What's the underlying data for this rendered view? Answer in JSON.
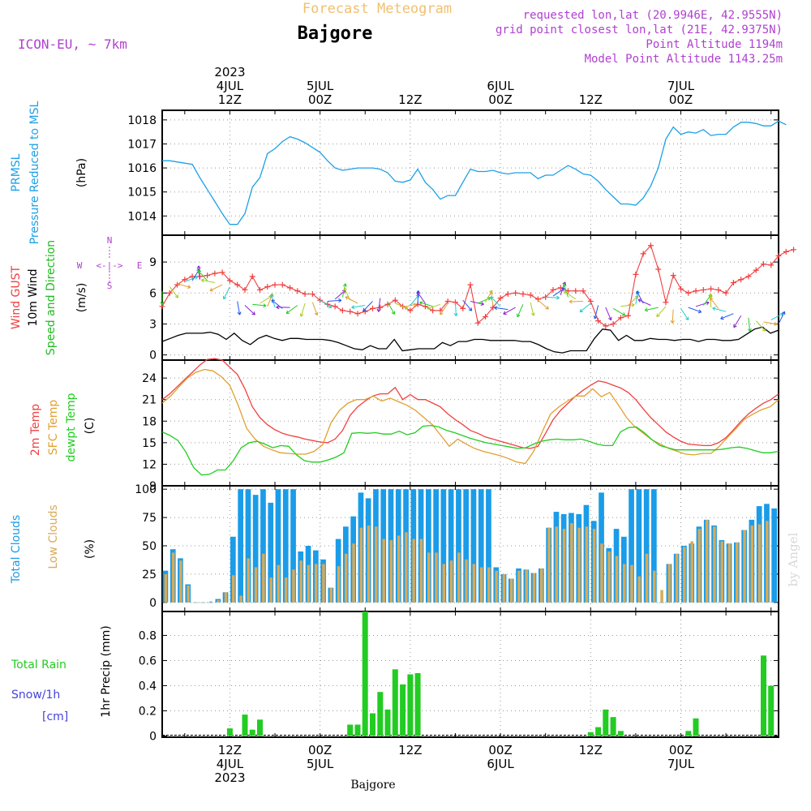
{
  "header": {
    "super_title": "Forecast Meteogram",
    "location": "Bajgore",
    "model": "ICON-EU, ~ 7km",
    "requested": "requested lon,lat (20.9946E, 42.9555N)",
    "grid_point": "grid point closest lon,lat (21E, 42.9375N)",
    "point_altitude": "Point Altitude 1194m",
    "model_altitude": "Model Point Altitude 1143.25m",
    "footer_location": "Bajgore",
    "watermark": "by Angel"
  },
  "colors": {
    "pressure": "#1ca0e8",
    "gust": "#f04040",
    "wind": "#000000",
    "dir_label": "#22bb22",
    "temp2m": "#f04040",
    "sfc": "#e0a030",
    "dewpt": "#22cc22",
    "total_clouds": "#1a9ce8",
    "low_clouds": "#d8aa58",
    "rain": "#22cc22",
    "snow": "#4444dd",
    "compass": "#b040d0",
    "header_info": "#b040d0",
    "super_title": "#f0c070"
  },
  "compass": {
    "n": "N",
    "s": "S",
    "w": "W",
    "e": "E",
    "glyph_h": "<-|->"
  },
  "time_axis": {
    "top_labels": [
      {
        "hour": 12,
        "lines": [
          "2023",
          "4JUL",
          "12Z"
        ]
      },
      {
        "hour": 24,
        "lines": [
          "5JUL",
          "00Z"
        ]
      },
      {
        "hour": 36,
        "lines": [
          "12Z"
        ]
      },
      {
        "hour": 48,
        "lines": [
          "6JUL",
          "00Z"
        ]
      },
      {
        "hour": 60,
        "lines": [
          "12Z"
        ]
      },
      {
        "hour": 72,
        "lines": [
          "7JUL",
          "00Z"
        ]
      }
    ],
    "bottom_labels": [
      {
        "hour": 12,
        "lines": [
          "12Z",
          "4JUL",
          "2023"
        ]
      },
      {
        "hour": 24,
        "lines": [
          "00Z",
          "5JUL"
        ]
      },
      {
        "hour": 36,
        "lines": [
          "12Z"
        ]
      },
      {
        "hour": 48,
        "lines": [
          "00Z",
          "6JUL"
        ]
      },
      {
        "hour": 60,
        "lines": [
          "12Z"
        ]
      },
      {
        "hour": 72,
        "lines": [
          "00Z",
          "7JUL"
        ]
      }
    ]
  },
  "chart_data": [
    {
      "type": "line",
      "id": "pressure",
      "ylabel_lines": [
        "PRMSL",
        "Pressure Reduced to MSL"
      ],
      "units": "(hPa)",
      "ylim": [
        1013.2,
        1018.4
      ],
      "yticks": [
        1014,
        1015,
        1016,
        1017,
        1018
      ],
      "series": [
        {
          "values": [
            1016.3,
            1016.3,
            1016.25,
            1016.2,
            1016.15,
            1015.6,
            1015.1,
            1014.6,
            1014.1,
            1013.65,
            1013.65,
            1014.1,
            1015.2,
            1015.6,
            1016.6,
            1016.8,
            1017.1,
            1017.3,
            1017.2,
            1017.05,
            1016.85,
            1016.65,
            1016.3,
            1016.0,
            1015.9,
            1015.95,
            1016.0,
            1016.0,
            1016.0,
            1015.95,
            1015.8,
            1015.45,
            1015.4,
            1015.5,
            1015.95,
            1015.4,
            1015.1,
            1014.7,
            1014.85,
            1014.85,
            1015.4,
            1015.95,
            1015.85,
            1015.85,
            1015.9,
            1015.8,
            1015.75,
            1015.8,
            1015.8,
            1015.8,
            1015.55,
            1015.7,
            1015.7,
            1015.9,
            1016.1,
            1015.95,
            1015.75,
            1015.7,
            1015.45,
            1015.1,
            1014.8,
            1014.5,
            1014.5,
            1014.45,
            1014.75,
            1015.25,
            1016.0,
            1017.2,
            1017.7,
            1017.4,
            1017.5,
            1017.45,
            1017.6,
            1017.35,
            1017.4,
            1017.4,
            1017.7,
            1017.9,
            1017.9,
            1017.85,
            1017.75,
            1017.75,
            1017.95,
            1017.8
          ]
        }
      ]
    },
    {
      "type": "line",
      "id": "wind",
      "ylabel_lines": [
        "Wind GUST",
        "10m Wind",
        "Speed and Direction"
      ],
      "units": "(m/s)",
      "ylim": [
        -0.5,
        11.6
      ],
      "yticks": [
        0,
        3,
        6,
        9
      ],
      "series": [
        {
          "name": "Wind GUST",
          "values": [
            4.7,
            6.0,
            6.8,
            7.3,
            7.6,
            7.6,
            7.7,
            7.9,
            8.0,
            7.2,
            6.8,
            6.3,
            7.6,
            6.3,
            6.6,
            6.8,
            6.8,
            6.5,
            6.2,
            5.9,
            5.9,
            5.3,
            4.9,
            4.7,
            4.3,
            4.2,
            4.0,
            4.2,
            4.5,
            4.6,
            4.9,
            5.3,
            4.7,
            4.3,
            4.9,
            4.7,
            4.3,
            4.3,
            5.2,
            5.1,
            4.5,
            6.8,
            3.1,
            3.7,
            4.6,
            5.5,
            5.9,
            6.0,
            5.9,
            5.8,
            5.4,
            5.6,
            6.3,
            6.5,
            6.2,
            6.2,
            6.2,
            5.2,
            3.3,
            2.8,
            3.0,
            3.6,
            3.8,
            7.8,
            9.8,
            10.6,
            8.3,
            5.1,
            7.7,
            6.4,
            6.0,
            6.2,
            6.3,
            6.4,
            6.3,
            6.0,
            7.0,
            7.3,
            7.6,
            8.2,
            8.8,
            8.7,
            9.6,
            10.0,
            10.2
          ]
        },
        {
          "name": "10m Wind",
          "values": [
            1.3,
            1.6,
            1.9,
            2.1,
            2.1,
            2.1,
            2.2,
            2.0,
            1.5,
            2.1,
            1.4,
            1.0,
            1.6,
            1.9,
            1.6,
            1.4,
            1.6,
            1.6,
            1.5,
            1.5,
            1.5,
            1.4,
            1.2,
            0.9,
            0.6,
            0.5,
            0.9,
            0.6,
            0.6,
            1.5,
            0.4,
            0.5,
            0.6,
            0.6,
            0.6,
            1.2,
            0.9,
            1.3,
            1.3,
            1.5,
            1.5,
            1.4,
            1.4,
            1.4,
            1.4,
            1.3,
            1.3,
            1.0,
            0.6,
            0.3,
            0.2,
            0.4,
            0.4,
            0.4,
            1.6,
            2.5,
            2.4,
            1.4,
            1.9,
            1.4,
            1.4,
            1.6,
            1.5,
            1.5,
            1.4,
            1.5,
            1.5,
            1.3,
            1.5,
            1.5,
            1.4,
            1.4,
            1.5,
            2.0,
            2.5,
            2.7,
            2.1,
            2.4
          ]
        },
        {
          "name": "Speed and Direction",
          "values": [
            6.2,
            6.6,
            6.9,
            7.1,
            7.2,
            7.3,
            7.2,
            7.0,
            6.8,
            6.6,
            5.2,
            4.8,
            4.9,
            5.0,
            4.7,
            4.6,
            4.5,
            4.6,
            4.8,
            5.0,
            5.1,
            5.3,
            5.2,
            5.4,
            5.6,
            5.3,
            5.0,
            4.8,
            5.2,
            5.5,
            5.1,
            5.0,
            4.6,
            4.8,
            4.9,
            5.0,
            4.7,
            4.9,
            5.0,
            5.1,
            5.3,
            5.2,
            5.0,
            5.1,
            4.8,
            4.7,
            4.4,
            4.6,
            4.9,
            5.1,
            5.3,
            5.6,
            5.7,
            5.8,
            5.6,
            5.4,
            5.2,
            5.0,
            4.8,
            4.6,
            4.5,
            4.7,
            4.8,
            4.9,
            5.0,
            4.8,
            4.6,
            4.7,
            4.4,
            4.5,
            4.6,
            4.7,
            4.8,
            4.6,
            4.5,
            4.2,
            4.0,
            3.8,
            3.6,
            3.3,
            3.2,
            3.4,
            3.0
          ]
        }
      ]
    },
    {
      "type": "line",
      "id": "temperature",
      "ylabel_lines": [
        "2m Temp",
        "SFC Temp",
        "dewpt Temp"
      ],
      "units": "(C)",
      "ylim": [
        9,
        26.5
      ],
      "yticks": [
        9,
        12,
        15,
        18,
        21,
        24
      ],
      "series": [
        {
          "name": "2m Temp",
          "values": [
            21.0,
            21.8,
            22.8,
            23.8,
            24.8,
            25.8,
            26.6,
            26.7,
            26.5,
            25.5,
            24.5,
            22.5,
            20.0,
            18.5,
            17.5,
            16.8,
            16.3,
            16.0,
            15.8,
            15.5,
            15.3,
            15.1,
            15.0,
            15.5,
            16.7,
            18.8,
            20.0,
            20.8,
            21.5,
            21.8,
            21.8,
            22.7,
            21.0,
            21.7,
            21.0,
            21.0,
            20.5,
            20.0,
            19.0,
            18.2,
            17.5,
            16.7,
            16.3,
            15.8,
            15.5,
            15.2,
            14.9,
            14.6,
            14.3,
            14.2,
            14.5,
            16.3,
            18.2,
            19.5,
            20.5,
            21.5,
            22.3,
            23.0,
            23.6,
            23.4,
            23.0,
            22.6,
            22.0,
            21.0,
            19.7,
            18.5,
            17.5,
            16.5,
            15.8,
            15.2,
            14.8,
            14.7,
            14.6,
            14.6,
            15.0,
            15.7,
            16.8,
            18.0,
            19.0,
            19.8,
            20.5,
            21.0,
            21.8
          ]
        },
        {
          "name": "SFC Temp",
          "values": [
            20.5,
            21.5,
            22.8,
            24.0,
            24.8,
            25.2,
            25.0,
            24.2,
            23.0,
            20.2,
            17.0,
            15.5,
            14.5,
            14.0,
            13.6,
            13.5,
            13.4,
            13.4,
            13.8,
            14.7,
            17.8,
            19.5,
            20.5,
            21.0,
            21.0,
            21.5,
            20.8,
            21.2,
            20.7,
            20.2,
            19.5,
            18.5,
            17.5,
            16.0,
            14.5,
            15.5,
            14.8,
            14.2,
            13.8,
            13.5,
            13.2,
            12.8,
            12.3,
            12.1,
            13.8,
            16.5,
            19.0,
            20.0,
            20.8,
            21.5,
            21.5,
            22.5,
            21.4,
            22.0,
            20.3,
            18.5,
            17.2,
            16.3,
            15.4,
            14.8,
            14.2,
            13.8,
            13.4,
            13.3,
            13.5,
            13.5,
            14.5,
            15.8,
            17.0,
            18.3,
            19.0,
            19.6,
            20.0,
            21.0
          ]
        },
        {
          "name": "dewpt Temp",
          "values": [
            16.5,
            16.0,
            15.3,
            13.7,
            11.5,
            10.5,
            10.6,
            11.2,
            11.2,
            12.5,
            14.3,
            15.0,
            15.2,
            14.8,
            14.3,
            14.6,
            14.5,
            13.3,
            12.5,
            12.3,
            12.3,
            12.6,
            13.0,
            13.6,
            16.3,
            16.4,
            16.3,
            16.4,
            16.2,
            16.2,
            16.6,
            16.1,
            16.4,
            17.3,
            17.4,
            17.2,
            16.7,
            16.4,
            16.0,
            15.6,
            15.3,
            15.0,
            14.8,
            14.6,
            14.4,
            14.2,
            14.3,
            14.8,
            15.2,
            15.4,
            15.5,
            15.4,
            15.4,
            15.5,
            15.2,
            14.8,
            14.6,
            14.6,
            16.5,
            17.1,
            17.2,
            16.4,
            15.4,
            14.6,
            14.3,
            14.0,
            14.0,
            14.0,
            14.0,
            14.0,
            14.0,
            14.1,
            14.3,
            14.4,
            14.2,
            13.9,
            13.6,
            13.6,
            13.8
          ]
        }
      ]
    },
    {
      "type": "bar",
      "id": "clouds",
      "ylabel_lines": [
        "Total Clouds",
        "Low Clouds"
      ],
      "units": "(%)",
      "ylim": [
        -8,
        103
      ],
      "yticks": [
        0,
        25,
        50,
        75,
        100
      ],
      "series": [
        {
          "name": "Total Clouds",
          "values": [
            28,
            47,
            39,
            16,
            0,
            0,
            0,
            3,
            9,
            58,
            100,
            100,
            95,
            100,
            88,
            100,
            100,
            100,
            45,
            50,
            46,
            38,
            13,
            56,
            67,
            76,
            97,
            92,
            100,
            100,
            100,
            100,
            100,
            100,
            100,
            100,
            100,
            100,
            100,
            100,
            100,
            100,
            100,
            100,
            31,
            25,
            21,
            30,
            29,
            26,
            30,
            66,
            80,
            78,
            79,
            78,
            86,
            72,
            97,
            48,
            65,
            58,
            100,
            100,
            100,
            100,
            0,
            34,
            43,
            50,
            52,
            67,
            73,
            68,
            55,
            52,
            53,
            64,
            73,
            85,
            87,
            83
          ]
        },
        {
          "name": "Low Clouds",
          "values": [
            25,
            44,
            37,
            15,
            0,
            0,
            1,
            2,
            9,
            24,
            6,
            39,
            31,
            43,
            22,
            33,
            22,
            29,
            37,
            33,
            34,
            34,
            13,
            32,
            43,
            52,
            66,
            68,
            67,
            56,
            55,
            59,
            62,
            56,
            56,
            44,
            44,
            34,
            37,
            44,
            38,
            34,
            31,
            31,
            28,
            25,
            21,
            28,
            29,
            26,
            30,
            66,
            67,
            65,
            70,
            66,
            67,
            65,
            52,
            45,
            41,
            34,
            33,
            23,
            43,
            28,
            11,
            34,
            43,
            49,
            54,
            65,
            73,
            67,
            54,
            52,
            53,
            64,
            68,
            69,
            72
          ]
        }
      ]
    },
    {
      "type": "bar",
      "id": "precip",
      "ylabel_lines": [
        "1hr Precip (mm)"
      ],
      "left_labels": [
        "Total  Rain",
        "Snow/1h",
        "[cm]"
      ],
      "ylim": [
        -0.01,
        0.99
      ],
      "yticks": [
        0,
        0.2,
        0.4,
        0.6,
        0.8
      ],
      "series": [
        {
          "name": "Total  Rain",
          "hours": [
            9,
            11,
            12,
            14,
            15,
            16,
            19,
            20,
            21,
            27,
            28,
            29,
            30,
            31,
            32,
            33,
            34,
            35,
            36,
            37,
            38,
            39,
            40,
            52,
            53,
            54,
            55,
            56,
            57,
            58,
            59,
            60,
            61,
            62,
            63,
            64,
            65,
            72,
            73,
            74,
            75,
            76,
            78,
            79,
            80,
            81,
            82,
            83,
            84,
            84.9
          ],
          "values": [
            0,
            0,
            0.06,
            0.17,
            0.05,
            0.13,
            0,
            0,
            0,
            0,
            0.09,
            0.09,
            0.99,
            0.18,
            0.35,
            0.21,
            0.53,
            0.41,
            0.49,
            0.5,
            0,
            0,
            0,
            0,
            0,
            0,
            0,
            0,
            0,
            0,
            0,
            0.03,
            0.07,
            0.21,
            0.15,
            0.04,
            0,
            0,
            0.04,
            0.14,
            0,
            0,
            0,
            0,
            0,
            0,
            0,
            0.64,
            0.4,
            0
          ]
        }
      ]
    }
  ]
}
